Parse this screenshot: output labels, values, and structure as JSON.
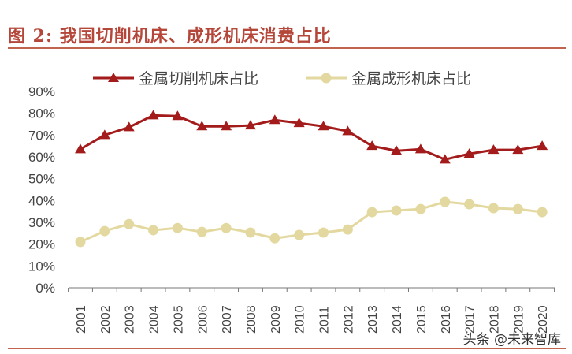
{
  "title": "图 2:  我国切削机床、成形机床消费占比",
  "watermark": "头条 @未来智库",
  "chart_data": {
    "type": "line",
    "categories": [
      "2001",
      "2002",
      "2003",
      "2004",
      "2005",
      "2006",
      "2007",
      "2008",
      "2009",
      "2010",
      "2011",
      "2012",
      "2013",
      "2014",
      "2015",
      "2016",
      "2017",
      "2018",
      "2019",
      "2020"
    ],
    "ylim": [
      0,
      90
    ],
    "yticks": [
      "0%",
      "10%",
      "20%",
      "30%",
      "40%",
      "50%",
      "60%",
      "70%",
      "80%",
      "90%"
    ],
    "legend": "top",
    "grid": false,
    "series": [
      {
        "name": "金属切削机床占比",
        "color": "#a31b1b",
        "marker": "triangle",
        "values": [
          63.5,
          70,
          73.6,
          79,
          78.7,
          74,
          74,
          74.4,
          76.9,
          75.5,
          74,
          71.8,
          65,
          62.8,
          63.5,
          58.8,
          61.4,
          63.2,
          63.2,
          65
        ]
      },
      {
        "name": "金属成形机床占比",
        "color": "#e3d9a0",
        "marker": "circle",
        "values": [
          21,
          26,
          29.2,
          26.4,
          27.4,
          25.6,
          27.4,
          25.3,
          22.7,
          24.2,
          25.3,
          26.7,
          34.7,
          35.4,
          36.1,
          39.4,
          38.3,
          36.5,
          36.1,
          34.7
        ]
      }
    ]
  }
}
